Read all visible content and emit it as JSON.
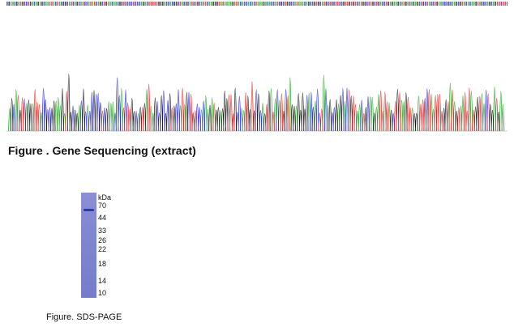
{
  "figures": {
    "sequencing": {
      "caption": "Figure . Gene Sequencing (extract)",
      "trace_colors": {
        "A": "#1aa31a",
        "C": "#2222dd",
        "G": "#111111",
        "T": "#e02020"
      }
    },
    "sds_page": {
      "caption": "Figure. SDS-PAGE",
      "unit_label": "kDa",
      "markers": [
        "70",
        "44",
        "33",
        "26",
        "22",
        "18",
        "14",
        "10"
      ],
      "gel_color": "#7f85cf",
      "band_color": "#2c3aa6"
    }
  }
}
